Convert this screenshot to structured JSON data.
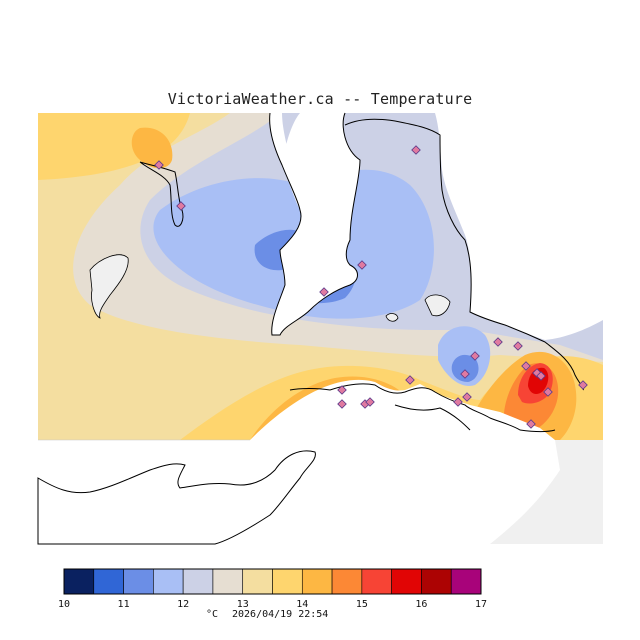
{
  "header": {
    "title": "VictoriaWeather.ca -- Temperature"
  },
  "map": {
    "region_label": "Victoria region temperature contour map",
    "colors": {
      "land_bg": "#f0f0f0",
      "water": "#ffffff",
      "coast": "#000000",
      "station_fill": "#e07aa0",
      "station_stroke": "#5a3a8a"
    },
    "stations_count": 22
  },
  "legend": {
    "bands": [
      {
        "from": 10.0,
        "to": 10.5,
        "color": "#0a2160"
      },
      {
        "from": 10.5,
        "to": 11.0,
        "color": "#3066d6"
      },
      {
        "from": 11.0,
        "to": 11.5,
        "color": "#6b8ee6"
      },
      {
        "from": 11.5,
        "to": 12.0,
        "color": "#a9bff5"
      },
      {
        "from": 12.0,
        "to": 12.5,
        "color": "#ccd1e6"
      },
      {
        "from": 12.5,
        "to": 13.0,
        "color": "#e6ded2"
      },
      {
        "from": 13.0,
        "to": 13.5,
        "color": "#f4dea0"
      },
      {
        "from": 13.5,
        "to": 14.0,
        "color": "#fed56e"
      },
      {
        "from": 14.0,
        "to": 14.5,
        "color": "#fdb743"
      },
      {
        "from": 14.5,
        "to": 15.0,
        "color": "#fc8835"
      },
      {
        "from": 15.0,
        "to": 15.5,
        "color": "#f74435"
      },
      {
        "from": 15.5,
        "to": 16.0,
        "color": "#e10505"
      },
      {
        "from": 16.0,
        "to": 16.5,
        "color": "#ac0303"
      },
      {
        "from": 16.5,
        "to": 17.0,
        "color": "#a8037a"
      }
    ],
    "tick_labels": [
      "10",
      "11",
      "12",
      "13",
      "14",
      "15",
      "16",
      "17"
    ],
    "units": "°C",
    "timestamp": "2026/04/19 22:54"
  }
}
